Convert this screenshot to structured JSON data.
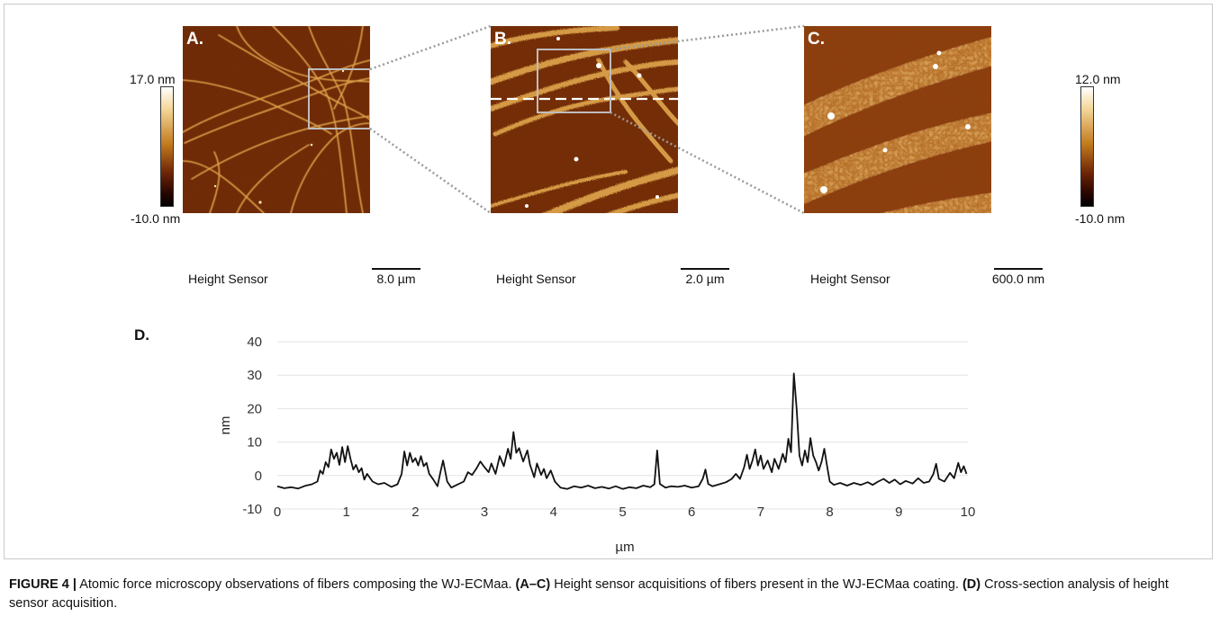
{
  "panels": [
    {
      "label": "A.",
      "sensor": "Height Sensor",
      "scale": "8.0 µm"
    },
    {
      "label": "B.",
      "sensor": "Height Sensor",
      "scale": "2.0 µm"
    },
    {
      "label": "C.",
      "sensor": "Height Sensor",
      "scale": "600.0 nm"
    }
  ],
  "colorbars": [
    {
      "max": "17.0 nm",
      "min": "-10.0 nm"
    },
    {
      "max": "12.0 nm",
      "min": "-10.0 nm"
    }
  ],
  "panel_d_label": "D.",
  "chart_data": {
    "type": "line",
    "xlabel": "µm",
    "ylabel": "nm",
    "xlim": [
      0,
      10
    ],
    "ylim": [
      -10,
      40
    ],
    "xticks": [
      0,
      1,
      2,
      3,
      4,
      5,
      6,
      7,
      8,
      9,
      10
    ],
    "yticks": [
      -10,
      0,
      10,
      20,
      30,
      40
    ],
    "grid": true,
    "series": [
      {
        "values": [
          [
            0.0,
            -3.2
          ],
          [
            0.1,
            -3.8
          ],
          [
            0.2,
            -3.5
          ],
          [
            0.3,
            -3.9
          ],
          [
            0.4,
            -3.1
          ],
          [
            0.5,
            -2.6
          ],
          [
            0.58,
            -1.8
          ],
          [
            0.62,
            1.5
          ],
          [
            0.66,
            0.5
          ],
          [
            0.7,
            4.0
          ],
          [
            0.74,
            2.5
          ],
          [
            0.78,
            7.8
          ],
          [
            0.82,
            5.0
          ],
          [
            0.86,
            6.8
          ],
          [
            0.9,
            3.2
          ],
          [
            0.94,
            8.5
          ],
          [
            0.98,
            4.0
          ],
          [
            1.02,
            8.8
          ],
          [
            1.06,
            5.0
          ],
          [
            1.1,
            1.8
          ],
          [
            1.14,
            3.2
          ],
          [
            1.18,
            1.0
          ],
          [
            1.22,
            2.2
          ],
          [
            1.26,
            -1.2
          ],
          [
            1.3,
            0.5
          ],
          [
            1.38,
            -1.8
          ],
          [
            1.46,
            -2.6
          ],
          [
            1.55,
            -2.2
          ],
          [
            1.65,
            -3.4
          ],
          [
            1.74,
            -2.6
          ],
          [
            1.8,
            0.5
          ],
          [
            1.84,
            7.2
          ],
          [
            1.88,
            3.0
          ],
          [
            1.92,
            6.8
          ],
          [
            1.96,
            4.0
          ],
          [
            2.0,
            5.2
          ],
          [
            2.04,
            3.0
          ],
          [
            2.08,
            5.8
          ],
          [
            2.12,
            2.8
          ],
          [
            2.16,
            3.8
          ],
          [
            2.2,
            0.5
          ],
          [
            2.26,
            -1.2
          ],
          [
            2.32,
            -3.2
          ],
          [
            2.36,
            0.8
          ],
          [
            2.4,
            4.5
          ],
          [
            2.46,
            -1.8
          ],
          [
            2.52,
            -3.6
          ],
          [
            2.6,
            -2.8
          ],
          [
            2.7,
            -1.8
          ],
          [
            2.76,
            1.0
          ],
          [
            2.82,
            0.2
          ],
          [
            2.88,
            2.0
          ],
          [
            2.94,
            4.2
          ],
          [
            3.0,
            2.5
          ],
          [
            3.06,
            1.0
          ],
          [
            3.1,
            3.6
          ],
          [
            3.16,
            0.5
          ],
          [
            3.22,
            5.8
          ],
          [
            3.28,
            2.8
          ],
          [
            3.34,
            8.0
          ],
          [
            3.38,
            5.0
          ],
          [
            3.42,
            13.0
          ],
          [
            3.46,
            6.8
          ],
          [
            3.5,
            8.2
          ],
          [
            3.56,
            4.2
          ],
          [
            3.62,
            7.5
          ],
          [
            3.66,
            3.2
          ],
          [
            3.72,
            -0.5
          ],
          [
            3.76,
            3.6
          ],
          [
            3.82,
            0.2
          ],
          [
            3.86,
            2.0
          ],
          [
            3.9,
            -0.8
          ],
          [
            3.96,
            1.5
          ],
          [
            4.02,
            -1.8
          ],
          [
            4.1,
            -3.6
          ],
          [
            4.2,
            -4.0
          ],
          [
            4.3,
            -3.2
          ],
          [
            4.4,
            -3.6
          ],
          [
            4.5,
            -3.0
          ],
          [
            4.6,
            -3.8
          ],
          [
            4.7,
            -3.4
          ],
          [
            4.8,
            -3.9
          ],
          [
            4.9,
            -3.2
          ],
          [
            5.0,
            -4.0
          ],
          [
            5.1,
            -3.5
          ],
          [
            5.2,
            -3.8
          ],
          [
            5.3,
            -3.0
          ],
          [
            5.4,
            -3.5
          ],
          [
            5.46,
            -2.6
          ],
          [
            5.5,
            7.5
          ],
          [
            5.54,
            -2.5
          ],
          [
            5.62,
            -3.6
          ],
          [
            5.7,
            -3.2
          ],
          [
            5.8,
            -3.4
          ],
          [
            5.9,
            -3.0
          ],
          [
            6.0,
            -3.6
          ],
          [
            6.1,
            -3.2
          ],
          [
            6.16,
            -1.0
          ],
          [
            6.2,
            1.8
          ],
          [
            6.24,
            -2.5
          ],
          [
            6.3,
            -3.2
          ],
          [
            6.4,
            -2.6
          ],
          [
            6.5,
            -2.0
          ],
          [
            6.58,
            -1.0
          ],
          [
            6.64,
            0.5
          ],
          [
            6.7,
            -1.0
          ],
          [
            6.76,
            2.5
          ],
          [
            6.8,
            6.2
          ],
          [
            6.84,
            2.0
          ],
          [
            6.88,
            4.5
          ],
          [
            6.92,
            7.8
          ],
          [
            6.96,
            3.0
          ],
          [
            7.0,
            6.0
          ],
          [
            7.04,
            2.0
          ],
          [
            7.1,
            4.5
          ],
          [
            7.16,
            1.0
          ],
          [
            7.2,
            5.0
          ],
          [
            7.26,
            2.0
          ],
          [
            7.32,
            6.5
          ],
          [
            7.36,
            4.0
          ],
          [
            7.4,
            11.0
          ],
          [
            7.44,
            7.0
          ],
          [
            7.48,
            30.5
          ],
          [
            7.52,
            20.0
          ],
          [
            7.56,
            6.0
          ],
          [
            7.6,
            3.0
          ],
          [
            7.64,
            7.5
          ],
          [
            7.68,
            4.0
          ],
          [
            7.72,
            11.2
          ],
          [
            7.76,
            6.0
          ],
          [
            7.8,
            4.0
          ],
          [
            7.84,
            1.5
          ],
          [
            7.88,
            4.0
          ],
          [
            7.92,
            8.0
          ],
          [
            7.96,
            3.0
          ],
          [
            8.0,
            -1.8
          ],
          [
            8.06,
            -2.8
          ],
          [
            8.15,
            -2.2
          ],
          [
            8.25,
            -3.0
          ],
          [
            8.35,
            -2.2
          ],
          [
            8.45,
            -2.8
          ],
          [
            8.55,
            -2.0
          ],
          [
            8.62,
            -2.8
          ],
          [
            8.7,
            -1.8
          ],
          [
            8.78,
            -1.0
          ],
          [
            8.86,
            -2.2
          ],
          [
            8.94,
            -1.2
          ],
          [
            9.02,
            -2.6
          ],
          [
            9.1,
            -1.6
          ],
          [
            9.2,
            -2.4
          ],
          [
            9.28,
            -0.8
          ],
          [
            9.36,
            -2.2
          ],
          [
            9.44,
            -1.8
          ],
          [
            9.5,
            0.5
          ],
          [
            9.54,
            3.5
          ],
          [
            9.58,
            -1.0
          ],
          [
            9.66,
            -1.8
          ],
          [
            9.74,
            0.8
          ],
          [
            9.8,
            -0.8
          ],
          [
            9.86,
            3.8
          ],
          [
            9.9,
            1.0
          ],
          [
            9.94,
            2.8
          ],
          [
            9.98,
            0.5
          ]
        ]
      }
    ]
  },
  "caption": {
    "figure": "FIGURE 4 |",
    "t1": " Atomic force microscopy observations of fibers composing the WJ-ECMaa. ",
    "b1": "(A–C)",
    "t2": " Height sensor acquisitions of fibers present in the WJ-ECMaa coating. ",
    "b2": "(D)",
    "t3": " Cross-section analysis of height sensor acquisition."
  }
}
